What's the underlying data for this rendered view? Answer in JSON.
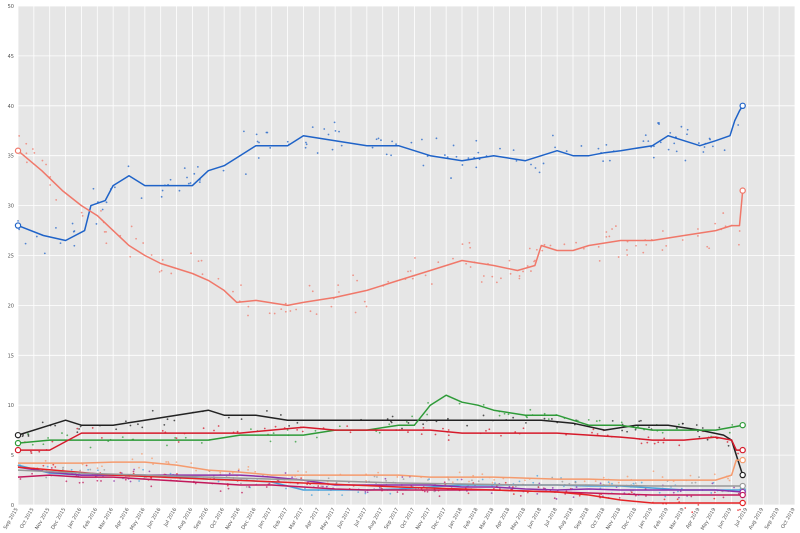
{
  "chart_data": {
    "type": "line",
    "title": "",
    "xlabel": "",
    "ylabel": "",
    "ylim": [
      0,
      50
    ],
    "yticks": [
      "0",
      "5",
      "10",
      "15",
      "20",
      "25",
      "30",
      "35",
      "40",
      "45",
      "50"
    ],
    "grid": true,
    "legend": "none",
    "xticks": [
      "Sep 2015",
      "Oct 2015",
      "Nov 2015",
      "Dec 2015",
      "Jan 2016",
      "Feb 2016",
      "Mar 2016",
      "Apr 2016",
      "May 2016",
      "Jun 2016",
      "Jul 2016",
      "Aug 2016",
      "Sep 2016",
      "Oct 2016",
      "Nov 2016",
      "Dec 2016",
      "Jan 2017",
      "Feb 2017",
      "Mar 2017",
      "Apr 2017",
      "May 2017",
      "Jun 2017",
      "Jul 2017",
      "Aug 2017",
      "Sep 2017",
      "Oct 2017",
      "Nov 2017",
      "Dec 2017",
      "Jan 2018",
      "Feb 2018",
      "Mar 2018",
      "Apr 2018",
      "May 2018",
      "Jun 2018",
      "Jul 2018",
      "Aug 2018",
      "Sep 2018",
      "Oct 2018",
      "Nov 2018",
      "Dec 2018",
      "Jan 2019",
      "Feb 2019",
      "Mar 2019",
      "Apr 2019",
      "May 2019",
      "Jun 2019",
      "Jul 2019",
      "Aug 2019",
      "Sep 2019",
      "Oct 2019"
    ],
    "x_start": "Sep 2015",
    "x_end": "Oct 2019",
    "series": [
      {
        "color": "#1f63c8",
        "values": [
          [
            0,
            28
          ],
          [
            1.6,
            27
          ],
          [
            3,
            26.5
          ],
          [
            4.2,
            27.5
          ],
          [
            4.6,
            30
          ],
          [
            5.5,
            30.5
          ],
          [
            6,
            32
          ],
          [
            7,
            33
          ],
          [
            8,
            32
          ],
          [
            10,
            32
          ],
          [
            11,
            32
          ],
          [
            12,
            33.5
          ],
          [
            13,
            34
          ],
          [
            14,
            35
          ],
          [
            15,
            36
          ],
          [
            17,
            36
          ],
          [
            18,
            37
          ],
          [
            20,
            36.5
          ],
          [
            22,
            36
          ],
          [
            24,
            36
          ],
          [
            26,
            35
          ],
          [
            28,
            34.5
          ],
          [
            30,
            35
          ],
          [
            32,
            34.5
          ],
          [
            33,
            35
          ],
          [
            34,
            35.5
          ],
          [
            35,
            35
          ],
          [
            36,
            35
          ],
          [
            37,
            35.3
          ],
          [
            38,
            35.5
          ],
          [
            40,
            36
          ],
          [
            41,
            37
          ],
          [
            43,
            36
          ],
          [
            44,
            36.5
          ],
          [
            44.9,
            37
          ],
          [
            45.2,
            38.5
          ],
          [
            45.5,
            39.5
          ],
          [
            45.7,
            40
          ]
        ]
      },
      {
        "color": "#f0786a",
        "values": [
          [
            0,
            35.5
          ],
          [
            1.5,
            33.5
          ],
          [
            2.8,
            31.5
          ],
          [
            4,
            30
          ],
          [
            5,
            29
          ],
          [
            6,
            27.5
          ],
          [
            7,
            26
          ],
          [
            8,
            25
          ],
          [
            9,
            24.2
          ],
          [
            10,
            23.7
          ],
          [
            11,
            23.2
          ],
          [
            12,
            22.5
          ],
          [
            13,
            21.5
          ],
          [
            13.8,
            20.3
          ],
          [
            15,
            20.5
          ],
          [
            17,
            20
          ],
          [
            18,
            20.3
          ],
          [
            20,
            20.8
          ],
          [
            22,
            21.5
          ],
          [
            24,
            22.5
          ],
          [
            26,
            23.5
          ],
          [
            28,
            24.5
          ],
          [
            30,
            24
          ],
          [
            31.5,
            23.5
          ],
          [
            32.6,
            24
          ],
          [
            33,
            26
          ],
          [
            34,
            25.5
          ],
          [
            35,
            25.5
          ],
          [
            36,
            26
          ],
          [
            38,
            26.5
          ],
          [
            40,
            26.5
          ],
          [
            42,
            27
          ],
          [
            44,
            27.5
          ],
          [
            45,
            28
          ],
          [
            45.5,
            28
          ],
          [
            45.7,
            31.5
          ]
        ]
      },
      {
        "color": "#222222",
        "values": [
          [
            0,
            7
          ],
          [
            2,
            8
          ],
          [
            3,
            8.5
          ],
          [
            4,
            8
          ],
          [
            6,
            8
          ],
          [
            8,
            8.5
          ],
          [
            10,
            9
          ],
          [
            12,
            9.5
          ],
          [
            13,
            9
          ],
          [
            15,
            9
          ],
          [
            17,
            8.5
          ],
          [
            19,
            8.5
          ],
          [
            21,
            8.5
          ],
          [
            23,
            8.5
          ],
          [
            25,
            8.5
          ],
          [
            27,
            8.5
          ],
          [
            29,
            8.5
          ],
          [
            31,
            8.5
          ],
          [
            33,
            8.5
          ],
          [
            35,
            8.2
          ],
          [
            37,
            7.5
          ],
          [
            39,
            8
          ],
          [
            41,
            8
          ],
          [
            43,
            7.5
          ],
          [
            44.5,
            7
          ],
          [
            45,
            6.5
          ],
          [
            45.3,
            5
          ],
          [
            45.5,
            4
          ],
          [
            45.7,
            3
          ]
        ]
      },
      {
        "color": "#2e9b38",
        "values": [
          [
            0,
            6.2
          ],
          [
            2,
            6.5
          ],
          [
            4,
            6.5
          ],
          [
            6,
            6.5
          ],
          [
            8,
            6.5
          ],
          [
            10,
            6.5
          ],
          [
            12,
            6.5
          ],
          [
            14,
            7
          ],
          [
            16,
            7
          ],
          [
            18,
            7
          ],
          [
            20,
            7.5
          ],
          [
            22,
            7.5
          ],
          [
            24,
            8
          ],
          [
            25,
            8
          ],
          [
            26,
            10
          ],
          [
            27,
            11
          ],
          [
            28,
            10.3
          ],
          [
            29,
            10
          ],
          [
            30,
            9.5
          ],
          [
            32,
            9
          ],
          [
            34,
            9
          ],
          [
            36,
            8
          ],
          [
            38,
            8
          ],
          [
            40,
            7.5
          ],
          [
            42,
            7.5
          ],
          [
            44,
            7.5
          ],
          [
            45.7,
            8
          ]
        ]
      },
      {
        "color": "#d61a2b",
        "values": [
          [
            0,
            5.5
          ],
          [
            2,
            5.5
          ],
          [
            4,
            7.2
          ],
          [
            6,
            7.2
          ],
          [
            8,
            7.2
          ],
          [
            10,
            7.2
          ],
          [
            12,
            7.2
          ],
          [
            14,
            7.2
          ],
          [
            16,
            7.5
          ],
          [
            18,
            7.8
          ],
          [
            20,
            7.5
          ],
          [
            22,
            7.5
          ],
          [
            24,
            7.5
          ],
          [
            26,
            7.5
          ],
          [
            28,
            7.2
          ],
          [
            30,
            7.2
          ],
          [
            32,
            7.2
          ],
          [
            34,
            7.2
          ],
          [
            36,
            7
          ],
          [
            38,
            6.8
          ],
          [
            40,
            6.5
          ],
          [
            42,
            6.5
          ],
          [
            44,
            6.8
          ],
          [
            45,
            6.5
          ],
          [
            45.3,
            5.5
          ],
          [
            45.7,
            5.5
          ]
        ]
      },
      {
        "color": "#f59b6e",
        "values": [
          [
            0,
            4.2
          ],
          [
            2,
            4.2
          ],
          [
            4,
            4.2
          ],
          [
            6,
            4.3
          ],
          [
            8,
            4.3
          ],
          [
            10,
            4
          ],
          [
            12,
            3.5
          ],
          [
            14,
            3.3
          ],
          [
            16,
            3
          ],
          [
            18,
            3
          ],
          [
            20,
            3
          ],
          [
            22,
            3
          ],
          [
            24,
            3
          ],
          [
            26,
            2.8
          ],
          [
            28,
            2.8
          ],
          [
            30,
            2.8
          ],
          [
            32,
            2.7
          ],
          [
            34,
            2.6
          ],
          [
            36,
            2.6
          ],
          [
            38,
            2.5
          ],
          [
            40,
            2.5
          ],
          [
            42,
            2.5
          ],
          [
            44,
            2.5
          ],
          [
            45,
            3
          ],
          [
            45.3,
            4.5
          ],
          [
            45.7,
            4.5
          ]
        ]
      },
      {
        "color": "#4aa3dc",
        "values": [
          [
            0,
            4
          ],
          [
            2,
            3.2
          ],
          [
            4,
            3
          ],
          [
            6,
            3
          ],
          [
            8,
            3
          ],
          [
            10,
            2.8
          ],
          [
            12,
            2.6
          ],
          [
            14,
            2.5
          ],
          [
            16,
            2.3
          ],
          [
            18,
            1.5
          ],
          [
            20,
            1.5
          ],
          [
            22,
            1.5
          ],
          [
            24,
            1.6
          ],
          [
            26,
            1.8
          ],
          [
            28,
            2
          ],
          [
            30,
            2
          ],
          [
            32,
            2
          ],
          [
            34,
            2
          ],
          [
            36,
            1.9
          ],
          [
            38,
            1.9
          ],
          [
            40,
            1.7
          ],
          [
            42,
            1.5
          ],
          [
            44,
            1.5
          ],
          [
            45.7,
            1.5
          ]
        ]
      },
      {
        "color": "#8b2fa8",
        "values": [
          [
            0,
            3.8
          ],
          [
            2,
            3.3
          ],
          [
            4,
            3
          ],
          [
            6,
            3
          ],
          [
            8,
            3
          ],
          [
            10,
            3
          ],
          [
            12,
            3
          ],
          [
            14,
            3
          ],
          [
            16,
            2.8
          ],
          [
            18,
            2.5
          ],
          [
            20,
            2
          ],
          [
            22,
            2
          ],
          [
            24,
            2
          ],
          [
            26,
            2
          ],
          [
            28,
            1.8
          ],
          [
            30,
            1.8
          ],
          [
            32,
            1.6
          ],
          [
            34,
            1.5
          ],
          [
            36,
            1.6
          ],
          [
            38,
            1.5
          ],
          [
            40,
            1.5
          ],
          [
            42,
            1.5
          ],
          [
            44,
            1.5
          ],
          [
            45.7,
            1.3
          ]
        ]
      },
      {
        "color": "#c2185b",
        "values": [
          [
            0,
            2.8
          ],
          [
            2,
            3
          ],
          [
            4,
            2.8
          ],
          [
            6,
            2.8
          ],
          [
            8,
            2.6
          ],
          [
            10,
            2.4
          ],
          [
            12,
            2.2
          ],
          [
            14,
            2
          ],
          [
            16,
            2
          ],
          [
            18,
            1.8
          ],
          [
            20,
            1.6
          ],
          [
            22,
            1.5
          ],
          [
            24,
            1.5
          ],
          [
            26,
            1.5
          ],
          [
            28,
            1.5
          ],
          [
            30,
            1.5
          ],
          [
            32,
            1.4
          ],
          [
            34,
            1.3
          ],
          [
            36,
            1.2
          ],
          [
            38,
            1.1
          ],
          [
            40,
            1
          ],
          [
            42,
            1
          ],
          [
            44,
            1
          ],
          [
            45.7,
            1
          ]
        ]
      },
      {
        "color": "#e52225",
        "values": [
          [
            0,
            3.8
          ],
          [
            6,
            3
          ],
          [
            12,
            2.6
          ],
          [
            18,
            2.2
          ],
          [
            24,
            1.8
          ],
          [
            30,
            1.5
          ],
          [
            34,
            1.3
          ],
          [
            36,
            1
          ],
          [
            38,
            0.5
          ],
          [
            40,
            0.2
          ],
          [
            42,
            0.2
          ],
          [
            44,
            0.2
          ],
          [
            45.7,
            0.2
          ]
        ]
      },
      {
        "color": "#999999",
        "values": [
          [
            0,
            3.5
          ],
          [
            4,
            3.2
          ],
          [
            8,
            3
          ],
          [
            12,
            2.8
          ],
          [
            16,
            2.6
          ],
          [
            20,
            2.4
          ],
          [
            24,
            2.2
          ],
          [
            28,
            2.1
          ],
          [
            32,
            2
          ],
          [
            36,
            2
          ],
          [
            40,
            1.9
          ],
          [
            44,
            1.9
          ],
          [
            45.7,
            1.9
          ]
        ]
      }
    ]
  }
}
